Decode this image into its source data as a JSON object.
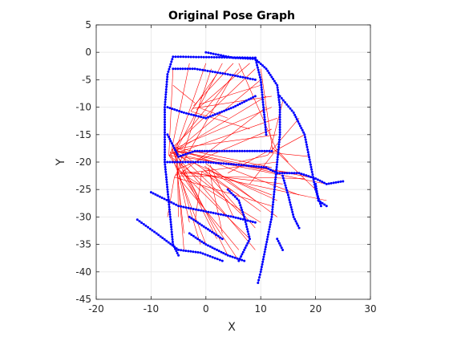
{
  "chart_data": {
    "type": "scatter",
    "title": "Original Pose Graph",
    "xlabel": "X",
    "ylabel": "Y",
    "xlim": [
      -20,
      30
    ],
    "ylim": [
      -45,
      5
    ],
    "xticks": [
      "-20",
      "-10",
      "0",
      "10",
      "20",
      "30"
    ],
    "yticks": [
      "5",
      "0",
      "-5",
      "-10",
      "-15",
      "-20",
      "-25",
      "-30",
      "-35",
      "-40",
      "-45"
    ],
    "grid": true,
    "colors": {
      "poses": "#0000ff",
      "loop_edges": "#ff0000",
      "axes": "#262626",
      "grid": "#e6e6e6"
    },
    "series": [
      {
        "role": "pose-trajectory",
        "marker": "dot",
        "paths": [
          [
            [
              0,
              0
            ],
            [
              5,
              -1
            ],
            [
              9,
              -1.2
            ],
            [
              11,
              -3
            ],
            [
              13,
              -6
            ],
            [
              13.5,
              -10
            ],
            [
              13.5,
              -15
            ],
            [
              13,
              -20
            ],
            [
              12.5,
              -25
            ],
            [
              12,
              -30
            ],
            [
              11,
              -35
            ],
            [
              10,
              -40
            ],
            [
              9.5,
              -42
            ]
          ],
          [
            [
              9,
              -1
            ],
            [
              -6,
              -0.8
            ],
            [
              -7,
              -4
            ],
            [
              -7.5,
              -10
            ],
            [
              -7.5,
              -15
            ],
            [
              -7.5,
              -20
            ],
            [
              -7,
              -25
            ],
            [
              -6.5,
              -30
            ],
            [
              -6,
              -35
            ],
            [
              -5,
              -37
            ]
          ],
          [
            [
              -7.5,
              -20
            ],
            [
              0,
              -20
            ],
            [
              6,
              -20.5
            ],
            [
              11,
              -21
            ],
            [
              13,
              -22
            ]
          ],
          [
            [
              -7,
              -15
            ],
            [
              -5,
              -19
            ],
            [
              -2,
              -18
            ],
            [
              2,
              -18
            ],
            [
              8,
              -18
            ],
            [
              12,
              -18
            ]
          ],
          [
            [
              9,
              -1
            ],
            [
              10,
              -5
            ],
            [
              10.5,
              -10
            ],
            [
              11,
              -15
            ]
          ],
          [
            [
              13.5,
              -8
            ],
            [
              16,
              -11
            ],
            [
              18,
              -15
            ],
            [
              19,
              -20
            ],
            [
              20,
              -25
            ],
            [
              21,
              -28
            ]
          ],
          [
            [
              13,
              -22
            ],
            [
              17,
              -22
            ],
            [
              20,
              -23
            ],
            [
              22,
              -24
            ],
            [
              25,
              -23.5
            ]
          ],
          [
            [
              -12.5,
              -30.5
            ],
            [
              -9,
              -33
            ],
            [
              -5,
              -36
            ],
            [
              -1,
              -36.5
            ],
            [
              3,
              -38
            ]
          ],
          [
            [
              -10,
              -25.5
            ],
            [
              -8,
              -26.5
            ],
            [
              -5,
              -28
            ],
            [
              0,
              -29
            ],
            [
              5,
              -30
            ],
            [
              9,
              -31
            ]
          ],
          [
            [
              4,
              -25
            ],
            [
              6,
              -27
            ],
            [
              7,
              -30
            ],
            [
              8,
              -34
            ],
            [
              6,
              -38
            ]
          ],
          [
            [
              -3,
              -33
            ],
            [
              0,
              -35
            ],
            [
              4,
              -37
            ],
            [
              7,
              -38
            ]
          ],
          [
            [
              14,
              -22.5
            ],
            [
              15,
              -26
            ],
            [
              16,
              -30
            ],
            [
              17,
              -32
            ]
          ],
          [
            [
              20,
              -24
            ],
            [
              20.5,
              -27
            ],
            [
              22,
              -28
            ]
          ],
          [
            [
              -6,
              -3
            ],
            [
              -2,
              -3
            ],
            [
              4,
              -4
            ],
            [
              9,
              -5
            ]
          ],
          [
            [
              -7,
              -10
            ],
            [
              -4,
              -11
            ],
            [
              0,
              -12
            ],
            [
              5,
              -10
            ],
            [
              9,
              -8
            ]
          ],
          [
            [
              13,
              -34
            ],
            [
              14,
              -36
            ]
          ],
          [
            [
              -3,
              -30
            ],
            [
              0,
              -32
            ],
            [
              3,
              -34
            ]
          ]
        ]
      },
      {
        "role": "loop-closure-edges",
        "edges_from_cluster": [
          {
            "hub": [
              -6,
              -18
            ],
            "targets": [
              [
                -6,
                -3
              ],
              [
                -3,
                -2
              ],
              [
                0,
                -2
              ],
              [
                3,
                -2
              ],
              [
                6,
                -3
              ],
              [
                9,
                -3
              ],
              [
                10,
                -5
              ],
              [
                11,
                -8
              ],
              [
                12,
                -10
              ],
              [
                13,
                -12
              ],
              [
                13,
                -15
              ],
              [
                13,
                -18
              ],
              [
                12,
                -21
              ],
              [
                13,
                -22
              ],
              [
                16,
                -22
              ],
              [
                20,
                -23
              ],
              [
                22,
                -24
              ],
              [
                17,
                -26
              ],
              [
                13,
                -27
              ],
              [
                10,
                -29
              ],
              [
                7,
                -30
              ],
              [
                4,
                -27
              ],
              [
                0,
                -29
              ],
              [
                -3,
                -31
              ],
              [
                -5,
                -30
              ],
              [
                0,
                -35
              ],
              [
                4,
                -37
              ],
              [
                -4,
                -36
              ],
              [
                6,
                -38
              ],
              [
                9,
                -36
              ]
            ]
          },
          {
            "hub": [
              -5,
              -22
            ],
            "targets": [
              [
                -7,
                -30
              ],
              [
                -4,
                -33
              ],
              [
                -1,
                -35
              ],
              [
                2,
                -34
              ],
              [
                6,
                -36
              ],
              [
                8,
                -34
              ],
              [
                10,
                -31
              ],
              [
                12,
                -28
              ],
              [
                14,
                -24
              ],
              [
                18,
                -23
              ],
              [
                22,
                -27
              ],
              [
                13,
                -20
              ],
              [
                12,
                -14
              ],
              [
                11,
                -10
              ],
              [
                5,
                -4
              ],
              [
                1,
                -3
              ]
            ]
          },
          {
            "hub": [
              0,
              -21
            ],
            "targets": [
              [
                6,
                -26
              ],
              [
                9,
                -27
              ],
              [
                12,
                -26
              ],
              [
                5,
                -30
              ],
              [
                9,
                -32
              ],
              [
                13,
                -30
              ],
              [
                3,
                -33
              ],
              [
                -2,
                -31
              ]
            ]
          },
          {
            "hub": [
              12,
              -18
            ],
            "targets": [
              [
                6,
                -20
              ],
              [
                4,
                -22
              ],
              [
                8,
                -24
              ],
              [
                15,
                -20
              ],
              [
                19,
                -19
              ],
              [
                20,
                -25
              ],
              [
                18,
                -15
              ],
              [
                17,
                -12
              ],
              [
                14,
                -9
              ],
              [
                10,
                -3
              ],
              [
                6,
                -2
              ]
            ]
          },
          {
            "hub": [
              -2,
              -10
            ],
            "targets": [
              [
                2,
                -4
              ],
              [
                5,
                -2
              ],
              [
                8,
                -2
              ],
              [
                10,
                -6
              ],
              [
                12,
                -8
              ],
              [
                -6,
                -6
              ],
              [
                4,
                -12
              ],
              [
                8,
                -14
              ]
            ]
          }
        ]
      }
    ]
  }
}
